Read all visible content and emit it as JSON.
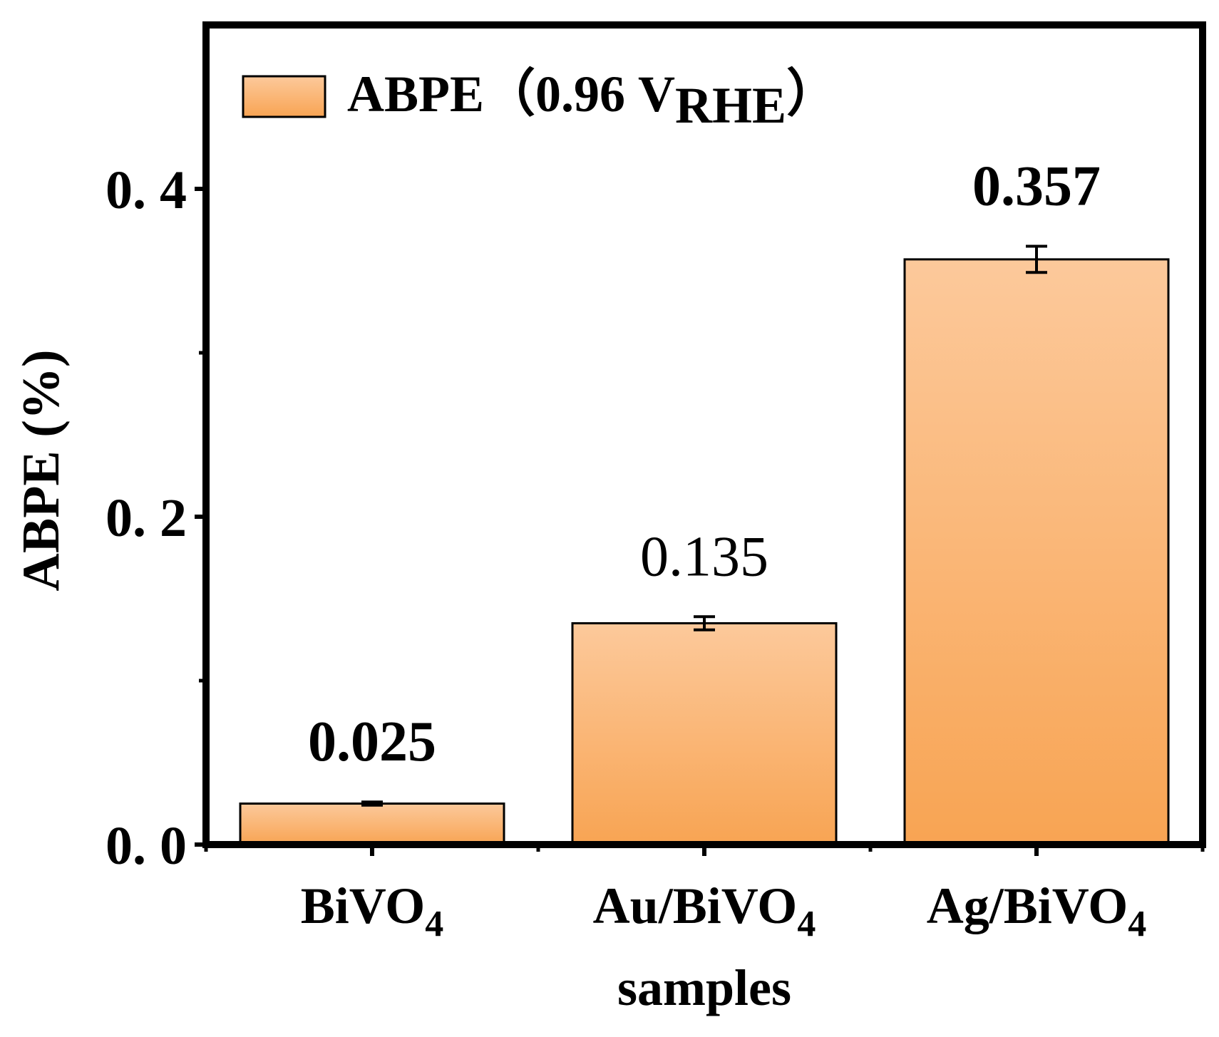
{
  "chart_data": {
    "type": "bar",
    "categories": [
      {
        "main": "BiVO",
        "sub": "4"
      },
      {
        "main": "Au/BiVO",
        "sub": "4"
      },
      {
        "main": "Ag/BiVO",
        "sub": "4"
      }
    ],
    "values": [
      0.025,
      0.135,
      0.357
    ],
    "errors": [
      0.001,
      0.004,
      0.008
    ],
    "data_labels": [
      "0.025",
      "0.135",
      "0.357"
    ],
    "xlabel": "samples",
    "ylabel": "ABPE (%)",
    "ylim": [
      0,
      0.5
    ],
    "yticks": [
      {
        "value": 0.0,
        "label": "0. 0"
      },
      {
        "value": 0.2,
        "label": "0. 2"
      },
      {
        "value": 0.4,
        "label": "0. 4"
      }
    ],
    "minor_yticks": [
      0.1,
      0.3
    ],
    "legend": {
      "position": "top-left",
      "text_main": "ABPE（0.96 V",
      "text_sub": "RHE",
      "text_end": "）"
    },
    "grid": false,
    "colors": {
      "bar_top": "#fcc99b",
      "bar_bottom": "#f8a453",
      "edge": "#000000"
    }
  }
}
